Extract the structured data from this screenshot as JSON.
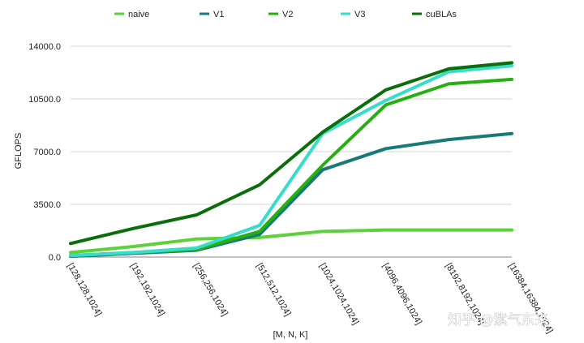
{
  "chart_data": {
    "type": "line",
    "title": "",
    "xlabel": "[M, N, K]",
    "ylabel": "GFLOPS",
    "ylim": [
      0,
      14000
    ],
    "yticks": [
      "0.0",
      "3500.0",
      "7000.0",
      "10500.0",
      "14000.0"
    ],
    "ytick_values": [
      0,
      3500,
      7000,
      10500,
      14000
    ],
    "grid": true,
    "legend_position": "top",
    "categories": [
      "[128,128,1024]",
      "[192,192,1024]",
      "[256,256,1024]",
      "[512,512,1024]",
      "[1024,1024,1024]",
      "[4096,4096,1024]",
      "[8192,8192,1024]",
      "[16384,16384,1024]"
    ],
    "series": [
      {
        "name": "naive",
        "color": "#5cd13a",
        "values": [
          300,
          700,
          1200,
          1300,
          1700,
          1800,
          1800,
          1800
        ]
      },
      {
        "name": "V1",
        "color": "#167a78",
        "values": [
          50,
          250,
          450,
          1500,
          5800,
          7200,
          7800,
          8200
        ]
      },
      {
        "name": "V2",
        "color": "#26b00f",
        "values": [
          100,
          300,
          500,
          1700,
          6100,
          10100,
          11500,
          11800
        ]
      },
      {
        "name": "V3",
        "color": "#37ddc8",
        "values": [
          100,
          300,
          600,
          2100,
          8200,
          10400,
          12300,
          12700
        ]
      },
      {
        "name": "cuBLAs",
        "color": "#0b6e0b",
        "values": [
          900,
          1900,
          2800,
          4800,
          8300,
          11100,
          12500,
          12900
        ]
      }
    ]
  },
  "watermark": {
    "text": "知乎 @紫气东来"
  }
}
